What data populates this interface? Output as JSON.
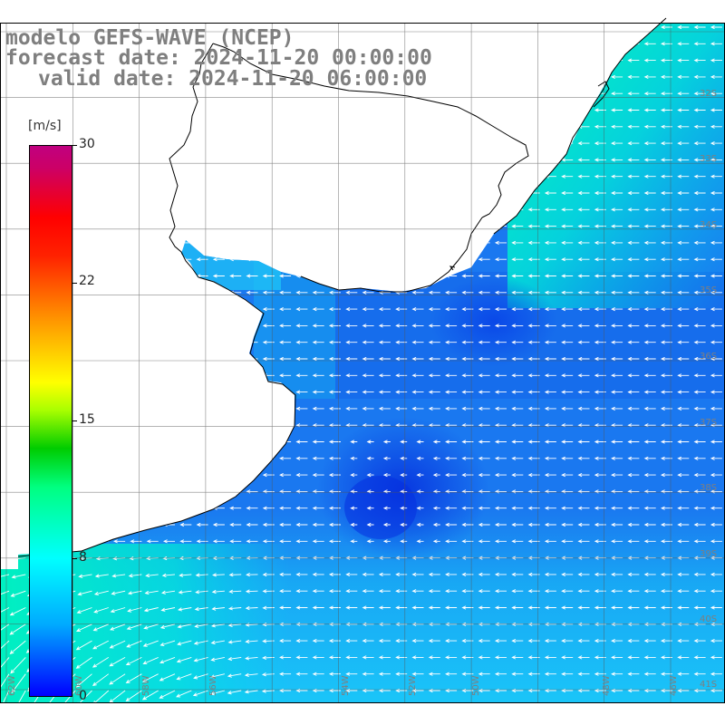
{
  "title": {
    "model": "modelo GEFS-WAVE (NCEP)",
    "forecast": "forecast date: 2024-11-20 00:00:00",
    "valid": "valid date: 2024-11-20 06:00:00"
  },
  "colorbar": {
    "unit": "[m/s]",
    "ticks": [
      "30",
      "22",
      "15",
      "8",
      "0"
    ],
    "colors": [
      "#0000ff",
      "#00aaff",
      "#00ffff",
      "#00ff80",
      "#00cc00",
      "#ffff00",
      "#ff9900",
      "#ff0000",
      "#c00080"
    ]
  },
  "lat_labels": [
    "32S",
    "33S",
    "34S",
    "35S",
    "36S",
    "37S",
    "38S",
    "39S",
    "40S",
    "41S"
  ],
  "lon_labels": [
    "62W",
    "60W",
    "58W",
    "56W",
    "54W",
    "52W",
    "50W",
    "48W",
    "46W"
  ],
  "field": {
    "variable": "wind speed",
    "ocean_base": "#1a78f0",
    "dark_core": "#0a3ee6",
    "light_south": "#1ad0f8",
    "coast": "#00f0e0",
    "land": "#ffffff",
    "arrow": "#ffffff"
  }
}
